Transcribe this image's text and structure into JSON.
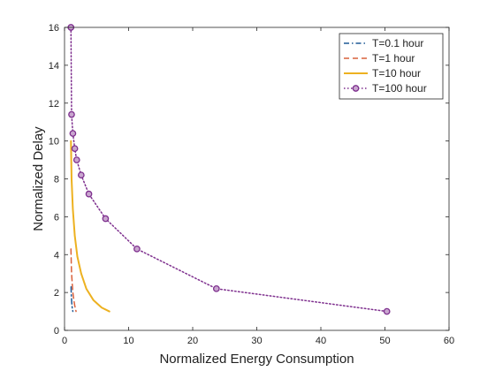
{
  "chart_data": {
    "type": "line",
    "title": "",
    "xlabel": "Normalized Energy Consumption",
    "ylabel": "Normalized Delay",
    "xlim": [
      0,
      60
    ],
    "ylim": [
      0,
      16
    ],
    "xticks": [
      0,
      10,
      20,
      30,
      40,
      50,
      60
    ],
    "yticks": [
      0,
      2,
      4,
      6,
      8,
      10,
      12,
      14,
      16
    ],
    "grid": false,
    "legend_position": "top-right",
    "series": [
      {
        "name": "T=0.1 hour",
        "color": "#1f5a96",
        "style": "dash-dot",
        "marker": "none",
        "x": [
          1.02,
          1.05,
          1.1,
          1.15,
          1.2,
          1.3
        ],
        "y": [
          2.3,
          1.9,
          1.6,
          1.35,
          1.2,
          1.0
        ]
      },
      {
        "name": "T=1 hour",
        "color": "#d9603b",
        "style": "dashed",
        "marker": "none",
        "x": [
          1.0,
          1.05,
          1.1,
          1.2,
          1.3,
          1.45,
          1.6,
          1.8
        ],
        "y": [
          4.3,
          3.6,
          3.0,
          2.5,
          2.0,
          1.6,
          1.3,
          1.0
        ]
      },
      {
        "name": "T=10 hour",
        "color": "#edb120",
        "style": "solid",
        "marker": "none",
        "x": [
          1.0,
          1.1,
          1.3,
          1.6,
          2.0,
          2.6,
          3.4,
          4.5,
          5.8,
          7.0
        ],
        "y": [
          10.0,
          8.0,
          6.4,
          5.0,
          3.9,
          3.0,
          2.2,
          1.6,
          1.2,
          1.0
        ]
      },
      {
        "name": "T=100 hour",
        "color": "#7e2f8e",
        "style": "dotted",
        "marker": "circle",
        "x": [
          1.0,
          1.1,
          1.3,
          1.6,
          1.9,
          2.6,
          3.8,
          6.4,
          11.3,
          23.7,
          50.3
        ],
        "y": [
          16.0,
          11.4,
          10.4,
          9.6,
          9.0,
          8.2,
          7.2,
          5.9,
          4.3,
          2.2,
          1.0
        ]
      }
    ]
  }
}
